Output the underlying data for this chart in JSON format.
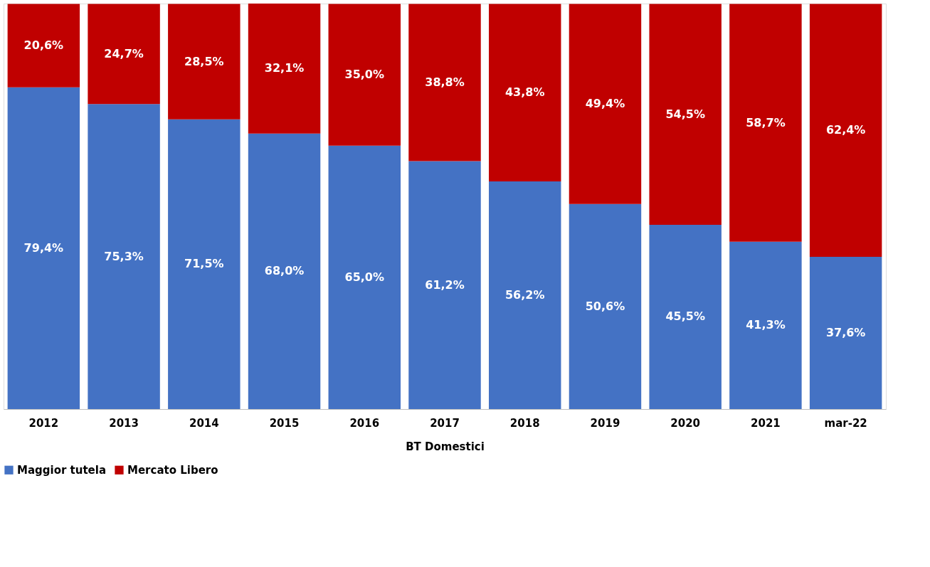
{
  "chart_data": {
    "type": "bar",
    "stacked": true,
    "xlabel": "BT Domestici",
    "legend": "bottom",
    "categories": [
      "2012",
      "2013",
      "2014",
      "2015",
      "2016",
      "2017",
      "2018",
      "2019",
      "2020",
      "2021",
      "mar-22"
    ],
    "series": [
      {
        "name": "Maggior tutela",
        "color": "#4472c4",
        "values": [
          79.4,
          75.3,
          71.5,
          68.0,
          65.0,
          61.2,
          56.2,
          50.6,
          45.5,
          41.3,
          37.6
        ],
        "value_labels": [
          "79,4%",
          "75,3%",
          "71,5%",
          "68,0%",
          "65,0%",
          "61,2%",
          "56,2%",
          "50,6%",
          "45,5%",
          "41,3%",
          "37,6%"
        ]
      },
      {
        "name": "Mercato Libero",
        "color": "#c00000",
        "values": [
          20.6,
          24.7,
          28.5,
          32.1,
          35.0,
          38.8,
          43.8,
          49.4,
          54.5,
          58.7,
          62.4
        ],
        "value_labels": [
          "20,6%",
          "24,7%",
          "28,5%",
          "32,1%",
          "35,0%",
          "38,8%",
          "43,8%",
          "49,4%",
          "54,5%",
          "58,7%",
          "62,4%"
        ]
      }
    ]
  }
}
